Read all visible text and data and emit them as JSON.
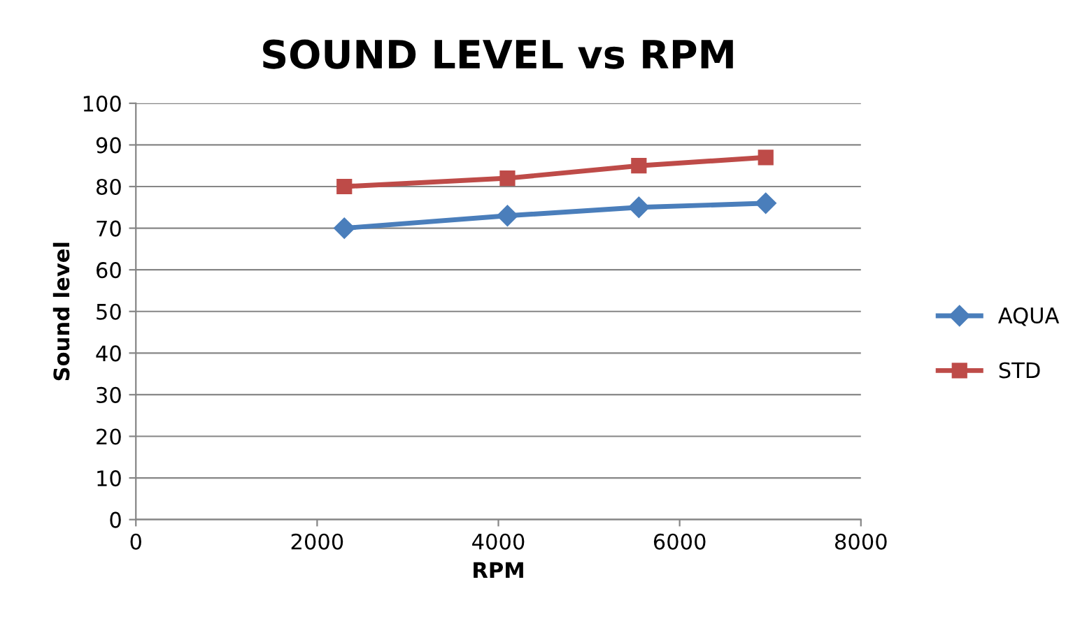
{
  "chart_data": {
    "type": "line",
    "title": "SOUND LEVEL vs RPM",
    "xlabel": "RPM",
    "ylabel": "Sound level",
    "series": [
      {
        "name": "AQUA",
        "color": "#4a7ebb",
        "x": [
          2300,
          4100,
          5550,
          6950
        ],
        "values": [
          70,
          73,
          75,
          76
        ],
        "marker": "diamond"
      },
      {
        "name": "STD",
        "color": "#be4b48",
        "x": [
          2300,
          4100,
          5550,
          6950
        ],
        "values": [
          80,
          82,
          85,
          87
        ],
        "marker": "square"
      }
    ],
    "xlim": [
      0,
      8000
    ],
    "xticks": [
      0,
      2000,
      4000,
      6000,
      8000
    ],
    "ylim": [
      0,
      100
    ],
    "yticks": [
      0,
      10,
      20,
      30,
      40,
      50,
      60,
      70,
      80,
      90,
      100
    ],
    "grid": "y",
    "legend": "right",
    "line_style": "solid"
  }
}
